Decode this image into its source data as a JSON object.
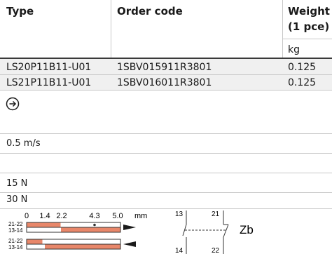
{
  "table": {
    "headers": {
      "type": "Type",
      "order_code": "Order code",
      "weight_line1": "Weight",
      "weight_line2": "(1 pce)",
      "weight_unit": "kg"
    },
    "rows": [
      {
        "type": "LS20P11B11-U01",
        "order_code": "1SBV015911R3801",
        "weight": "0.125"
      },
      {
        "type": "LS21P11B11-U01",
        "order_code": "1SBV016011R3801",
        "weight": "0.125"
      }
    ]
  },
  "specs": {
    "speed": "0.5 m/s",
    "force_1": "15 N",
    "force_2": "30 N"
  },
  "travel_diagram": {
    "scale_labels": [
      "0",
      "1.4",
      "2.2",
      "4.3",
      "5.0"
    ],
    "unit": "mm",
    "bar1_labels": [
      "21-22",
      "13-14"
    ],
    "bar2_labels": [
      "21-22",
      "13-14"
    ]
  },
  "contact_diagram": {
    "terminals": [
      "13",
      "21",
      "14",
      "22"
    ],
    "label": "Zb"
  },
  "colors": {
    "contact_fill": "#e8876a",
    "header_rule": "#3a3a3a",
    "row_shade": "#f0f0f0"
  },
  "icon": "arrow-right-circle-icon"
}
